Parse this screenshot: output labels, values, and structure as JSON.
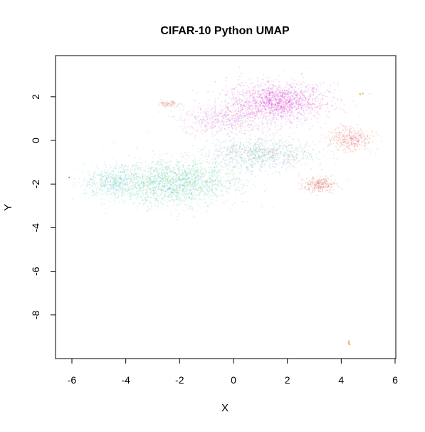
{
  "chart_data": {
    "type": "scatter",
    "title": "CIFAR-10 Python UMAP",
    "xlabel": "X",
    "ylabel": "Y",
    "xlim": [
      -6.5,
      6.0
    ],
    "ylim": [
      -10.2,
      3.8
    ],
    "x_ticks": [
      -6,
      -4,
      -2,
      0,
      2,
      4,
      6
    ],
    "y_ticks": [
      -8,
      -6,
      -4,
      -2,
      0,
      2
    ],
    "x_tick_labels": [
      "-6",
      "-4",
      "-2",
      "0",
      "2",
      "4",
      "6"
    ],
    "y_tick_labels": [
      "-8",
      "-6",
      "-4",
      "-2",
      "0",
      "2"
    ],
    "grid": false,
    "legend": "none",
    "point_opacity": 0.22,
    "clusters": [
      {
        "center": [
          1.6,
          1.8
        ],
        "spread": [
          1.5,
          0.75
        ],
        "count": 1700,
        "colors": [
          "#d400d4",
          "#e040c0",
          "#c848e0",
          "#ff6aa0",
          "#b070ff"
        ]
      },
      {
        "center": [
          -0.3,
          1.0
        ],
        "spread": [
          1.4,
          0.6
        ],
        "count": 700,
        "colors": [
          "#e060c0",
          "#c070e0",
          "#ff7f9f",
          "#a0a0ff"
        ]
      },
      {
        "center": [
          -2.2,
          -1.9
        ],
        "spread": [
          1.9,
          0.85
        ],
        "count": 2000,
        "colors": [
          "#66cc66",
          "#33cccc",
          "#66aaff",
          "#99dd55",
          "#40c8a0"
        ]
      },
      {
        "center": [
          1.0,
          -0.6
        ],
        "spread": [
          1.6,
          0.6
        ],
        "count": 900,
        "colors": [
          "#55cc66",
          "#44bbaa",
          "#66aaee",
          "#cc66cc"
        ]
      },
      {
        "center": [
          -4.5,
          -1.9
        ],
        "spread": [
          0.9,
          0.55
        ],
        "count": 500,
        "colors": [
          "#55ccdd",
          "#66aaff",
          "#77dd66",
          "#40c8a0"
        ]
      },
      {
        "center": [
          4.3,
          0.1
        ],
        "spread": [
          0.7,
          0.45
        ],
        "count": 420,
        "colors": [
          "#e05a3a",
          "#d47040",
          "#ff8c69",
          "#cc66cc"
        ]
      },
      {
        "center": [
          3.2,
          -2.0
        ],
        "spread": [
          0.5,
          0.28
        ],
        "count": 260,
        "colors": [
          "#d9534f",
          "#e07040",
          "#c05050"
        ]
      },
      {
        "center": [
          -2.4,
          1.7
        ],
        "spread": [
          0.3,
          0.15
        ],
        "count": 80,
        "colors": [
          "#e07050",
          "#d46a5a"
        ]
      }
    ],
    "outlier_points": [
      {
        "x": 4.28,
        "y": -9.28,
        "color": "#d4a017"
      },
      {
        "x": 4.3,
        "y": -9.35,
        "color": "#d4a017"
      },
      {
        "x": 4.29,
        "y": -9.2,
        "color": "#e0a020"
      },
      {
        "x": 4.8,
        "y": 2.15,
        "color": "#d4a017"
      },
      {
        "x": 4.7,
        "y": 2.12,
        "color": "#e0a020"
      },
      {
        "x": -6.1,
        "y": -1.7,
        "color": "#d46a5a"
      }
    ]
  }
}
